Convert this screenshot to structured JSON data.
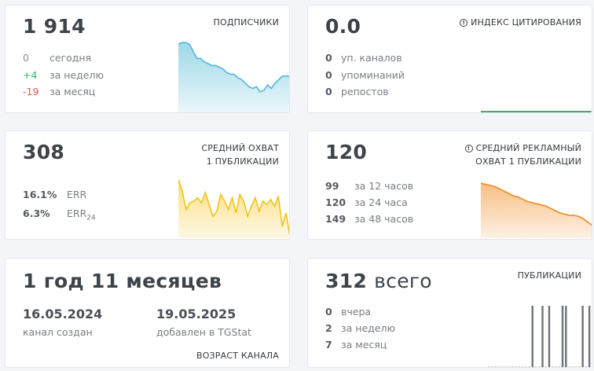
{
  "subscribers": {
    "value": "1 914",
    "caption": "ПОДПИСЧИКИ",
    "stats": [
      {
        "value": "0",
        "label": "сегодня"
      },
      {
        "value": "+4",
        "label": "за неделю"
      },
      {
        "value": "-19",
        "label": "за месяц"
      }
    ]
  },
  "citation": {
    "value": "0.0",
    "caption": "ИНДЕКС ЦИТИРОВАНИЯ",
    "icon": "info-icon",
    "stats": [
      {
        "value": "0",
        "label": "уп. каналов"
      },
      {
        "value": "0",
        "label": "упоминаний"
      },
      {
        "value": "0",
        "label": "репостов"
      }
    ]
  },
  "reach": {
    "value": "308",
    "caption_line1": "СРЕДНИЙ ОХВАТ",
    "caption_line2": "1 ПУБЛИКАЦИИ",
    "stats": [
      {
        "value": "16.1%",
        "label": "ERR"
      },
      {
        "value": "6.3%",
        "label": "ERR",
        "sub": "24"
      }
    ]
  },
  "ad_reach": {
    "value": "120",
    "caption_line1": "СРЕДНИЙ РЕКЛАМНЫЙ",
    "caption_line2": "ОХВАТ 1 ПУБЛИКАЦИИ",
    "icon": "info-icon",
    "stats": [
      {
        "value": "99",
        "label": "за 12 часов"
      },
      {
        "value": "120",
        "label": "за 24 часа"
      },
      {
        "value": "149",
        "label": "за 48 часов"
      }
    ]
  },
  "age": {
    "value": "1 год 11 месяцев",
    "caption": "ВОЗРАСТ КАНАЛА",
    "created_date": "16.05.2024",
    "created_label": "канал создан",
    "added_date": "19.05.2025",
    "added_label": "добавлен в TGStat"
  },
  "posts": {
    "value_num": "312",
    "value_word": "всего",
    "caption": "ПУБЛИКАЦИИ",
    "stats": [
      {
        "value": "0",
        "label": "вчера"
      },
      {
        "value": "2",
        "label": "за неделю"
      },
      {
        "value": "7",
        "label": "за месяц"
      }
    ]
  },
  "colors": {
    "subscribers_line": "#4fb8d6",
    "reach_line": "#f2c318",
    "ad_reach_line": "#f0891f",
    "citation_line": "#34b26e",
    "posts_bar": "#6c737a"
  },
  "sparklines": {
    "subscribers": [
      1930,
      1931,
      1931,
      1930,
      1926,
      1922,
      1922,
      1920,
      1919,
      1918,
      1918,
      1917,
      1916,
      1914,
      1913,
      1913,
      1911,
      1910,
      1908,
      1906,
      1905,
      1906,
      1903,
      1904,
      1907,
      1905,
      1908,
      1910,
      1912,
      1912,
      1912
    ],
    "reach": [
      318,
      311,
      300,
      304,
      305,
      307,
      304,
      310,
      303,
      296,
      299,
      309,
      305,
      300,
      307,
      298,
      309,
      305,
      296,
      302,
      307,
      299,
      305,
      303,
      306,
      302,
      308,
      290,
      298,
      284
    ],
    "ad_reach": [
      100,
      99,
      98,
      97,
      95,
      93,
      91,
      89,
      88,
      86,
      84,
      83,
      82,
      81,
      80,
      78,
      76,
      74,
      73,
      72,
      72,
      71,
      69,
      66,
      63
    ],
    "posts": [
      0,
      0,
      0,
      0,
      0,
      0,
      0,
      0,
      0,
      0,
      0,
      0,
      0,
      1,
      0,
      0,
      1,
      0,
      1,
      0,
      0,
      0,
      1,
      1,
      0,
      0,
      0,
      0,
      1,
      0,
      1
    ]
  }
}
